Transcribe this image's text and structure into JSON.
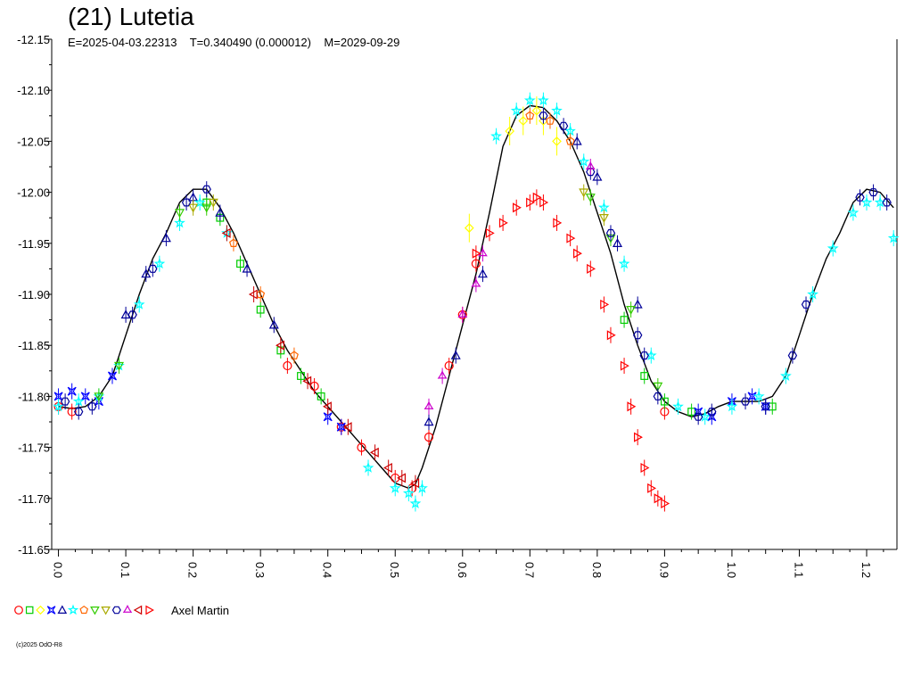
{
  "chart_data": {
    "type": "scatter",
    "title": "(21) Lutetia",
    "subtitle": "E=2025-04-03.22313    T=0.340490 (0.000012)    M=2029-09-29",
    "xlim": [
      -0.01,
      1.245
    ],
    "ylim": [
      -11.65,
      -12.15
    ],
    "y_inverted": true,
    "x_ticks": [
      "0.0",
      "0.1",
      "0.2",
      "0.3",
      "0.4",
      "0.5",
      "0.6",
      "0.7",
      "0.8",
      "0.9",
      "1.0",
      "1.1",
      "1.2"
    ],
    "y_ticks": [
      "-12.15",
      "-12.10",
      "-12.05",
      "-12.00",
      "-11.95",
      "-11.90",
      "-11.85",
      "-11.80",
      "-11.75",
      "-11.70",
      "-11.65"
    ],
    "grid": false,
    "legend_location": "bottom-left",
    "legend_label": "Axel Martin",
    "model_curve": {
      "color": "#000000",
      "x": [
        0.0,
        0.02,
        0.04,
        0.06,
        0.08,
        0.1,
        0.12,
        0.14,
        0.16,
        0.18,
        0.2,
        0.22,
        0.24,
        0.26,
        0.28,
        0.3,
        0.32,
        0.34,
        0.36,
        0.38,
        0.4,
        0.42,
        0.44,
        0.46,
        0.48,
        0.5,
        0.52,
        0.53,
        0.54,
        0.56,
        0.58,
        0.6,
        0.62,
        0.64,
        0.66,
        0.68,
        0.7,
        0.72,
        0.74,
        0.76,
        0.78,
        0.8,
        0.82,
        0.84,
        0.86,
        0.88,
        0.9,
        0.92,
        0.94,
        0.96,
        0.98,
        1.0,
        1.02,
        1.04,
        1.06,
        1.08,
        1.1,
        1.12,
        1.14,
        1.16,
        1.18,
        1.2,
        1.22,
        1.24
      ],
      "y": [
        -11.79,
        -11.788,
        -11.79,
        -11.8,
        -11.82,
        -11.86,
        -11.9,
        -11.935,
        -11.96,
        -11.99,
        -12.003,
        -12.003,
        -11.985,
        -11.96,
        -11.93,
        -11.9,
        -11.87,
        -11.845,
        -11.825,
        -11.805,
        -11.79,
        -11.775,
        -11.76,
        -11.745,
        -11.73,
        -11.715,
        -11.71,
        -11.714,
        -11.73,
        -11.77,
        -11.82,
        -11.87,
        -11.92,
        -11.98,
        -12.045,
        -12.075,
        -12.085,
        -12.083,
        -12.07,
        -12.05,
        -12.02,
        -11.98,
        -11.94,
        -11.89,
        -11.85,
        -11.815,
        -11.795,
        -11.785,
        -11.78,
        -11.783,
        -11.79,
        -11.795,
        -11.795,
        -11.795,
        -11.8,
        -11.82,
        -11.86,
        -11.9,
        -11.935,
        -11.96,
        -11.99,
        -12.003,
        -12.0,
        -11.985
      ]
    },
    "series": [
      {
        "color": "#ff0000",
        "marker": "circle",
        "x": [
          0.0,
          0.02,
          0.34,
          0.38,
          0.42,
          0.45,
          0.5,
          0.525,
          0.55,
          0.58,
          0.6,
          0.62,
          0.9
        ],
        "y": [
          -11.79,
          -11.785,
          -11.83,
          -11.81,
          -11.77,
          -11.75,
          -11.72,
          -11.71,
          -11.76,
          -11.83,
          -11.88,
          -11.93,
          -11.785
        ]
      },
      {
        "color": "#00cc00",
        "marker": "square",
        "x": [
          0.22,
          0.24,
          0.27,
          0.3,
          0.33,
          0.36,
          0.39,
          0.84,
          0.87,
          0.9,
          0.94,
          1.06
        ],
        "y": [
          -11.99,
          -11.975,
          -11.93,
          -11.885,
          -11.845,
          -11.82,
          -11.8,
          -11.875,
          -11.82,
          -11.795,
          -11.785,
          -11.79
        ]
      },
      {
        "color": "#ffff00",
        "marker": "diamond",
        "x": [
          0.61,
          0.67,
          0.69,
          0.71,
          0.72,
          0.74
        ],
        "y": [
          -11.965,
          -12.06,
          -12.07,
          -12.08,
          -12.07,
          -12.05
        ]
      },
      {
        "color": "#0000ff",
        "marker": "cross",
        "x": [
          0.0,
          0.02,
          0.04,
          0.06,
          0.08,
          0.4,
          0.42,
          0.95,
          0.97,
          1.0,
          1.03,
          1.05
        ],
        "y": [
          -11.8,
          -11.805,
          -11.8,
          -11.795,
          -11.82,
          -11.78,
          -11.77,
          -11.785,
          -11.78,
          -11.795,
          -11.8,
          -11.79
        ]
      },
      {
        "color": "#000099",
        "marker": "triangle",
        "x": [
          0.1,
          0.13,
          0.16,
          0.2,
          0.24,
          0.28,
          0.32,
          0.55,
          0.59,
          0.63,
          0.77,
          0.8,
          0.83,
          0.86
        ],
        "y": [
          -11.88,
          -11.92,
          -11.955,
          -11.995,
          -11.98,
          -11.925,
          -11.87,
          -11.775,
          -11.84,
          -11.92,
          -12.05,
          -12.015,
          -11.95,
          -11.89
        ]
      },
      {
        "color": "#00ffff",
        "marker": "star",
        "x": [
          0.0,
          0.03,
          0.06,
          0.09,
          0.12,
          0.15,
          0.18,
          0.21,
          0.25,
          0.46,
          0.5,
          0.52,
          0.53,
          0.54,
          0.65,
          0.68,
          0.7,
          0.72,
          0.74,
          0.76,
          0.78,
          0.81,
          0.84,
          0.88,
          0.92,
          0.96,
          1.0,
          1.04,
          1.08,
          1.12,
          1.15,
          1.18,
          1.2,
          1.22,
          1.24
        ],
        "y": [
          -11.79,
          -11.795,
          -11.8,
          -11.83,
          -11.89,
          -11.93,
          -11.97,
          -11.99,
          -11.96,
          -11.73,
          -11.71,
          -11.705,
          -11.695,
          -11.71,
          -12.055,
          -12.08,
          -12.09,
          -12.09,
          -12.08,
          -12.06,
          -12.03,
          -11.985,
          -11.93,
          -11.84,
          -11.79,
          -11.78,
          -11.79,
          -11.8,
          -11.82,
          -11.9,
          -11.945,
          -11.98,
          -11.99,
          -11.99,
          -11.955
        ]
      },
      {
        "color": "#ff6600",
        "marker": "pentagon",
        "x": [
          0.26,
          0.3,
          0.35,
          0.7,
          0.73,
          0.76
        ],
        "y": [
          -11.95,
          -11.9,
          -11.84,
          -12.075,
          -12.07,
          -12.05
        ]
      },
      {
        "color": "#33cc00",
        "marker": "triangle-down",
        "x": [
          0.06,
          0.09,
          0.18,
          0.22,
          0.79,
          0.82,
          0.85,
          0.89
        ],
        "y": [
          -11.8,
          -11.83,
          -11.98,
          -11.985,
          -11.995,
          -11.955,
          -11.885,
          -11.81
        ]
      },
      {
        "color": "#aaaa00",
        "marker": "triangle-down",
        "x": [
          0.2,
          0.23,
          0.78,
          0.81
        ],
        "y": [
          -11.985,
          -11.99,
          -12.0,
          -11.975
        ]
      },
      {
        "color": "#000099",
        "marker": "hexagon",
        "x": [
          0.01,
          0.03,
          0.05,
          0.11,
          0.14,
          0.19,
          0.22,
          0.72,
          0.75,
          0.79,
          0.82,
          0.86,
          0.87,
          0.89,
          0.95,
          0.97,
          1.02,
          1.05,
          1.09,
          1.11,
          1.19,
          1.21,
          1.23
        ],
        "y": [
          -11.795,
          -11.785,
          -11.79,
          -11.88,
          -11.925,
          -11.99,
          -12.003,
          -12.075,
          -12.065,
          -12.02,
          -11.96,
          -11.86,
          -11.84,
          -11.8,
          -11.78,
          -11.785,
          -11.795,
          -11.79,
          -11.84,
          -11.89,
          -11.995,
          -12.0,
          -11.99
        ]
      },
      {
        "color": "#cc00cc",
        "marker": "triangle-star",
        "x": [
          0.55,
          0.57,
          0.6,
          0.62,
          0.63,
          0.79
        ],
        "y": [
          -11.79,
          -11.82,
          -11.88,
          -11.91,
          -11.94,
          -12.025
        ]
      },
      {
        "color": "#cc0000",
        "marker": "triangle-left",
        "x": [
          0.25,
          0.29,
          0.33,
          0.37,
          0.4,
          0.43,
          0.47,
          0.49,
          0.51,
          0.53
        ],
        "y": [
          -11.96,
          -11.9,
          -11.85,
          -11.815,
          -11.79,
          -11.77,
          -11.745,
          -11.73,
          -11.72,
          -11.715
        ]
      },
      {
        "color": "#ff0000",
        "marker": "triangle-right",
        "x": [
          0.62,
          0.64,
          0.66,
          0.68,
          0.7,
          0.71,
          0.72,
          0.74,
          0.76,
          0.77,
          0.79,
          0.81,
          0.82,
          0.84,
          0.85,
          0.86,
          0.87,
          0.88,
          0.89,
          0.9
        ],
        "y": [
          -11.94,
          -11.96,
          -11.97,
          -11.985,
          -11.99,
          -11.995,
          -11.99,
          -11.97,
          -11.955,
          -11.94,
          -11.925,
          -11.89,
          -11.86,
          -11.83,
          -11.79,
          -11.76,
          -11.73,
          -11.71,
          -11.7,
          -11.695
        ]
      }
    ]
  },
  "legend": {
    "markers": [
      {
        "color": "#ff0000",
        "marker": "circle"
      },
      {
        "color": "#00cc00",
        "marker": "square"
      },
      {
        "color": "#ffff00",
        "marker": "diamond"
      },
      {
        "color": "#0000ff",
        "marker": "cross"
      },
      {
        "color": "#000099",
        "marker": "triangle"
      },
      {
        "color": "#00ffff",
        "marker": "star"
      },
      {
        "color": "#ff6600",
        "marker": "pentagon"
      },
      {
        "color": "#33cc00",
        "marker": "triangle-down"
      },
      {
        "color": "#aaaa00",
        "marker": "triangle-down"
      },
      {
        "color": "#000099",
        "marker": "hexagon"
      },
      {
        "color": "#cc00cc",
        "marker": "triangle-star"
      },
      {
        "color": "#cc0000",
        "marker": "triangle-left"
      },
      {
        "color": "#ff0000",
        "marker": "triangle-right"
      }
    ]
  },
  "copyright": "(c)2025 OdO-R8"
}
